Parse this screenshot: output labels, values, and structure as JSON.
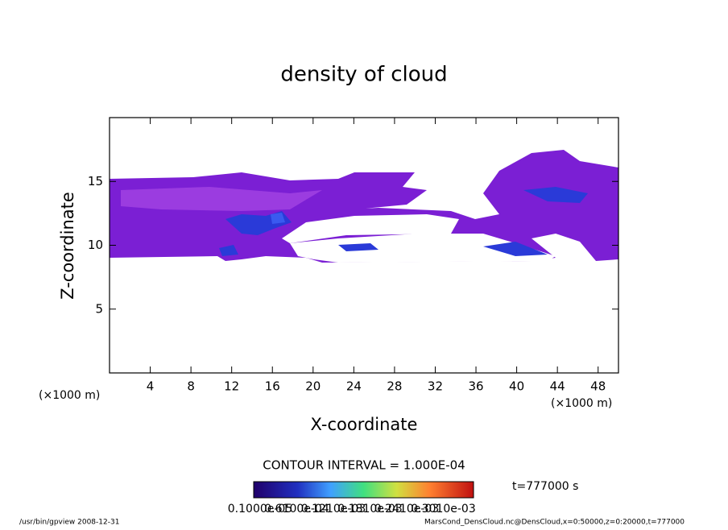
{
  "chart_data": {
    "type": "contour",
    "title": "density of cloud",
    "xlabel": "X-coordinate",
    "ylabel": "Z-coordinate",
    "xunit": "(×1000 m)",
    "yunit": "(×1000 m)",
    "xlim": [
      0,
      50
    ],
    "ylim": [
      0,
      20
    ],
    "xticks": [
      4,
      8,
      12,
      16,
      20,
      24,
      28,
      32,
      36,
      40,
      44,
      48
    ],
    "yticks": [
      5,
      10,
      15
    ],
    "contour_interval": "CONTOUR INTERVAL = 1.000E-04",
    "colorbar_labels": [
      "0.1000e-05",
      "0.6100e-04",
      "0.1210e-03",
      "0.1810e-03",
      "0.2410e-03",
      "0.3010e-03"
    ],
    "time": "t=777000 s",
    "footer_left": "/usr/bin/gpview   2008-12-31",
    "footer_right": "MarsCond_DensCloud.nc@DensCloud,x=0:50000,z=0:20000,t=777000"
  }
}
